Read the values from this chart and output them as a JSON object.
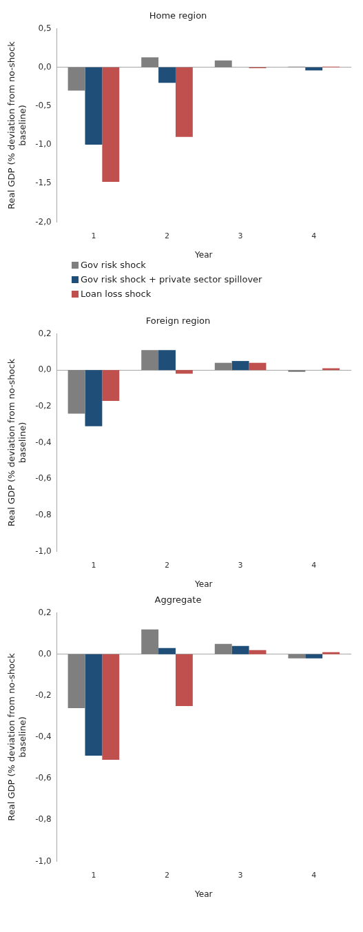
{
  "chart_data": [
    {
      "type": "bar",
      "title": "Home region",
      "xlabel": "Year",
      "ylabel": "Real GDP (% deviation from no-shock baseline)",
      "categories": [
        "1",
        "2",
        "3",
        "4"
      ],
      "series": [
        {
          "name": "Gov risk shock",
          "color": "#7f7f7f",
          "values": [
            -0.3,
            0.13,
            0.09,
            0.01
          ]
        },
        {
          "name": "Gov risk shock + private sector spillover",
          "color": "#1f4e79",
          "values": [
            -1.0,
            -0.2,
            0,
            -0.04
          ]
        },
        {
          "name": "Loan loss shock",
          "color": "#c0504d",
          "values": [
            -1.48,
            -0.9,
            -0.01,
            0.01
          ]
        }
      ],
      "ylim": [
        -2,
        0.5
      ],
      "yticks": [
        {
          "value": -2,
          "label": "-2,0"
        },
        {
          "value": -1.5,
          "label": "-1,5"
        },
        {
          "value": -1,
          "label": "-1,0"
        },
        {
          "value": -0.5,
          "label": "-0,5"
        },
        {
          "value": 0,
          "label": "0,0"
        },
        {
          "value": 0.5,
          "label": "0,5"
        }
      ],
      "legend": "bottom"
    },
    {
      "type": "bar",
      "title": "Foreign region",
      "xlabel": "Year",
      "ylabel": "Real GDP (% deviation from no-shock baseline)",
      "categories": [
        "1",
        "2",
        "3",
        "4"
      ],
      "series": [
        {
          "color": "#7f7f7f",
          "values": [
            -0.24,
            0.11,
            0.04,
            -0.01
          ]
        },
        {
          "color": "#1f4e79",
          "values": [
            -0.31,
            0.11,
            0.05,
            0
          ]
        },
        {
          "color": "#c0504d",
          "values": [
            -0.17,
            -0.02,
            0.04,
            0.01
          ]
        }
      ],
      "ylim": [
        -1,
        0.2
      ],
      "yticks": [
        {
          "value": -1,
          "label": "-1,0"
        },
        {
          "value": -0.8,
          "label": "-0,8"
        },
        {
          "value": -0.6,
          "label": "-0,6"
        },
        {
          "value": -0.4,
          "label": "-0,4"
        },
        {
          "value": -0.2,
          "label": "-0,2"
        },
        {
          "value": 0,
          "label": "0,0"
        },
        {
          "value": 0.2,
          "label": "0,2"
        }
      ],
      "legend": false
    },
    {
      "type": "bar",
      "title": "Aggregate",
      "xlabel": "Year",
      "ylabel": "Real GDP (% deviation from no-shock baseline)",
      "categories": [
        "1",
        "2",
        "3",
        "4"
      ],
      "series": [
        {
          "color": "#7f7f7f",
          "values": [
            -0.26,
            0.12,
            0.05,
            -0.02
          ]
        },
        {
          "color": "#1f4e79",
          "values": [
            -0.49,
            0.03,
            0.04,
            -0.02
          ]
        },
        {
          "color": "#c0504d",
          "values": [
            -0.51,
            -0.25,
            0.02,
            0.01
          ]
        }
      ],
      "ylim": [
        -1,
        0.2
      ],
      "yticks": [
        {
          "value": -1,
          "label": "-1,0"
        },
        {
          "value": -0.8,
          "label": "-0,8"
        },
        {
          "value": -0.6,
          "label": "-0,6"
        },
        {
          "value": -0.4,
          "label": "-0,4"
        },
        {
          "value": -0.2,
          "label": "-0,2"
        },
        {
          "value": 0,
          "label": "0,0"
        },
        {
          "value": 0.2,
          "label": "0,2"
        }
      ],
      "legend": false
    }
  ]
}
